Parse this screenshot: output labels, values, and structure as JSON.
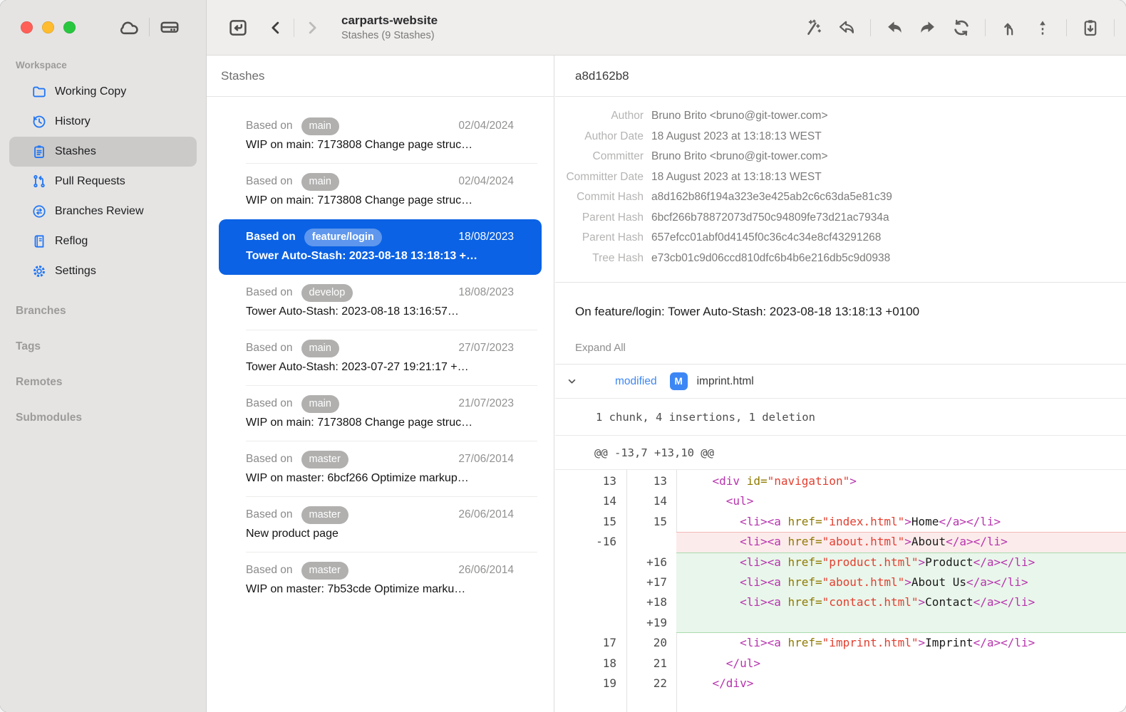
{
  "window": {
    "title": "carparts-website",
    "subtitle": "Stashes (9 Stashes)"
  },
  "titlebar": {
    "window_controls": [
      "close",
      "minimize",
      "zoom"
    ],
    "icons": [
      "cloud-icon",
      "drive-icon"
    ],
    "nav_icons": [
      "repo-list-icon",
      "chevron-left-icon",
      "chevron-right-icon"
    ]
  },
  "toolbar": {
    "actions": [
      "magic-wand-icon",
      "discard-icon",
      "|",
      "undo-icon",
      "redo-icon",
      "sync-icon",
      "|",
      "pull-icon",
      "push-icon",
      "|",
      "stash-apply-icon",
      "|"
    ]
  },
  "sidebar": {
    "workspace_label": "Workspace",
    "items": [
      {
        "label": "Working Copy",
        "icon": "folder-icon",
        "selected": false
      },
      {
        "label": "History",
        "icon": "history-icon",
        "selected": false
      },
      {
        "label": "Stashes",
        "icon": "clipboard-icon",
        "selected": true
      },
      {
        "label": "Pull Requests",
        "icon": "pull-request-icon",
        "selected": false
      },
      {
        "label": "Branches Review",
        "icon": "branches-review-icon",
        "selected": false
      },
      {
        "label": "Reflog",
        "icon": "reflog-icon",
        "selected": false
      },
      {
        "label": "Settings",
        "icon": "gear-icon",
        "selected": false
      }
    ],
    "sections": [
      "Branches",
      "Tags",
      "Remotes",
      "Submodules"
    ]
  },
  "stash_list": {
    "header": "Stashes",
    "based_on_label": "Based on",
    "items": [
      {
        "branch": "main",
        "date": "02/04/2024",
        "message": "WIP on main: 7173808 Change page struc…",
        "selected": false
      },
      {
        "branch": "main",
        "date": "02/04/2024",
        "message": "WIP on main: 7173808 Change page struc…",
        "selected": false
      },
      {
        "branch": "feature/login",
        "date": "18/08/2023",
        "message": "Tower Auto-Stash: 2023-08-18 13:18:13 +…",
        "selected": true
      },
      {
        "branch": "develop",
        "date": "18/08/2023",
        "message": "Tower Auto-Stash: 2023-08-18 13:16:57…",
        "selected": false
      },
      {
        "branch": "main",
        "date": "27/07/2023",
        "message": "Tower Auto-Stash: 2023-07-27 19:21:17 +…",
        "selected": false
      },
      {
        "branch": "main",
        "date": "21/07/2023",
        "message": "WIP on main: 7173808 Change page struc…",
        "selected": false
      },
      {
        "branch": "master",
        "date": "27/06/2014",
        "message": "WIP on master: 6bcf266 Optimize markup…",
        "selected": false
      },
      {
        "branch": "master",
        "date": "26/06/2014",
        "message": "New product page",
        "selected": false
      },
      {
        "branch": "master",
        "date": "26/06/2014",
        "message": "WIP on master: 7b53cde Optimize marku…",
        "selected": false
      }
    ]
  },
  "detail": {
    "title": "a8d162b8",
    "info_rows": [
      {
        "label": "Author",
        "value": "Bruno Brito <bruno@git-tower.com>"
      },
      {
        "label": "Author Date",
        "value": "18 August 2023 at 13:18:13 WEST"
      },
      {
        "label": "Committer",
        "value": "Bruno Brito <bruno@git-tower.com>"
      },
      {
        "label": "Committer Date",
        "value": "18 August 2023 at 13:18:13 WEST"
      },
      {
        "label": "Commit Hash",
        "value": "a8d162b86f194a323e3e425ab2c6c63da5e81c39"
      },
      {
        "label": "Parent Hash",
        "value": "6bcf266b78872073d750c94809fe73d21ac7934a"
      },
      {
        "label": "Parent Hash",
        "value": "657efcc01abf0d4145f0c36c4c34e8cf43291268"
      },
      {
        "label": "Tree Hash",
        "value": "e73cb01c9d06ccd810dfc6b4b6e216db5c9d0938"
      }
    ],
    "message": "On feature/login: Tower Auto-Stash: 2023-08-18 13:18:13 +0100",
    "expand_all": "Expand All",
    "file": {
      "status": "modified",
      "badge": "M",
      "name": "imprint.html"
    },
    "chunk_summary": "1 chunk, 4 insertions, 1 deletion",
    "hunk_header": "@@ -13,7 +13,10 @@",
    "diff_rows": [
      {
        "old": "13",
        "new": "13",
        "type": "context",
        "segs": [
          [
            "pln",
            "    "
          ],
          [
            "tag",
            "<div"
          ],
          [
            "pln",
            " "
          ],
          [
            "att",
            "id="
          ],
          [
            "str",
            "\"navigation\""
          ],
          [
            "tag",
            ">"
          ]
        ]
      },
      {
        "old": "14",
        "new": "14",
        "type": "context",
        "segs": [
          [
            "pln",
            "      "
          ],
          [
            "tag",
            "<ul>"
          ]
        ]
      },
      {
        "old": "15",
        "new": "15",
        "type": "context",
        "segs": [
          [
            "pln",
            "        "
          ],
          [
            "tag",
            "<li><a"
          ],
          [
            "pln",
            " "
          ],
          [
            "att",
            "href="
          ],
          [
            "str",
            "\"index.html\""
          ],
          [
            "tag",
            ">"
          ],
          [
            "pln",
            "Home"
          ],
          [
            "tag",
            "</a></li>"
          ]
        ]
      },
      {
        "old": "-16",
        "new": "",
        "type": "del",
        "segs": [
          [
            "pln",
            "        "
          ],
          [
            "tag",
            "<li><a"
          ],
          [
            "pln",
            " "
          ],
          [
            "att",
            "href="
          ],
          [
            "str",
            "\"about.html\""
          ],
          [
            "tag",
            ">"
          ],
          [
            "pln",
            "About"
          ],
          [
            "tag",
            "</a></li>"
          ]
        ]
      },
      {
        "old": "",
        "new": "+16",
        "type": "add",
        "segs": [
          [
            "pln",
            "        "
          ],
          [
            "tag",
            "<li><a"
          ],
          [
            "pln",
            " "
          ],
          [
            "att",
            "href="
          ],
          [
            "str",
            "\"product.html\""
          ],
          [
            "tag",
            ">"
          ],
          [
            "pln",
            "Product"
          ],
          [
            "tag",
            "</a></li>"
          ]
        ]
      },
      {
        "old": "",
        "new": "+17",
        "type": "add",
        "segs": [
          [
            "pln",
            "        "
          ],
          [
            "tag",
            "<li><a"
          ],
          [
            "pln",
            " "
          ],
          [
            "att",
            "href="
          ],
          [
            "str",
            "\"about.html\""
          ],
          [
            "tag",
            ">"
          ],
          [
            "pln",
            "About Us"
          ],
          [
            "tag",
            "</a></li>"
          ]
        ]
      },
      {
        "old": "",
        "new": "+18",
        "type": "add",
        "segs": [
          [
            "pln",
            "        "
          ],
          [
            "tag",
            "<li><a"
          ],
          [
            "pln",
            " "
          ],
          [
            "att",
            "href="
          ],
          [
            "str",
            "\"contact.html\""
          ],
          [
            "tag",
            ">"
          ],
          [
            "pln",
            "Contact"
          ],
          [
            "tag",
            "</a></li>"
          ]
        ]
      },
      {
        "old": "",
        "new": "+19",
        "type": "add",
        "segs": []
      },
      {
        "old": "17",
        "new": "20",
        "type": "context",
        "segs": [
          [
            "pln",
            "        "
          ],
          [
            "tag",
            "<li><a"
          ],
          [
            "pln",
            " "
          ],
          [
            "att",
            "href="
          ],
          [
            "str",
            "\"imprint.html\""
          ],
          [
            "tag",
            ">"
          ],
          [
            "pln",
            "Imprint"
          ],
          [
            "tag",
            "</a></li>"
          ]
        ]
      },
      {
        "old": "18",
        "new": "21",
        "type": "context",
        "segs": [
          [
            "pln",
            "      "
          ],
          [
            "tag",
            "</ul>"
          ]
        ]
      },
      {
        "old": "19",
        "new": "22",
        "type": "context",
        "segs": [
          [
            "pln",
            "    "
          ],
          [
            "tag",
            "</div>"
          ]
        ]
      }
    ]
  },
  "colors": {
    "accent": "#0b62e4",
    "selected_badge": "rgba(255,255,255,0.34)",
    "sidebar_icon_blue": "#2276f5",
    "modified_blue": "#3d87f5",
    "badge_gray": "#b1b0af",
    "traffic_red": "#ff5f57",
    "traffic_yellow": "#febc2e",
    "traffic_green": "#28c73f",
    "diff_del_bg": "#fcebeb",
    "diff_del_border": "#f2b8ba",
    "diff_add_bg": "#e9f6eb",
    "diff_add_border": "#a9dbae",
    "code_tag": "#b734ae",
    "code_attr": "#8f7a00",
    "code_string": "#e23f30"
  }
}
